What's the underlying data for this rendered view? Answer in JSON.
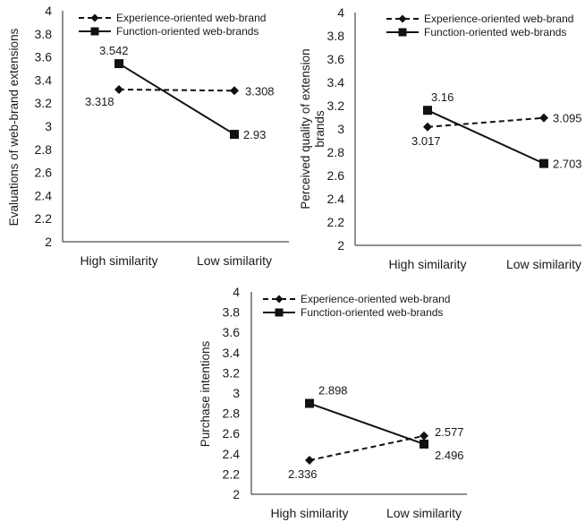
{
  "chart_data": [
    {
      "type": "line",
      "ylabel": "Evaluations of web-brand extensions",
      "categories": [
        "High similarity",
        "Low similarity"
      ],
      "ylim": [
        2,
        4
      ],
      "yticks": [
        "2",
        "2.2",
        "2.4",
        "2.6",
        "2.8",
        "3",
        "3.2",
        "3.4",
        "3.6",
        "3.8",
        "4"
      ],
      "legend": "top-right",
      "series": [
        {
          "name": "Experience-oriented web-brand",
          "values": [
            3.318,
            3.308
          ],
          "labels": [
            "3.318",
            "3.308"
          ],
          "style": "dashed",
          "marker": "diamond"
        },
        {
          "name": "Function-oriented web-brands",
          "values": [
            3.542,
            2.93
          ],
          "labels": [
            "3.542",
            "2.93"
          ],
          "style": "solid",
          "marker": "square"
        }
      ]
    },
    {
      "type": "line",
      "ylabel": "Perceived quality of extension brands",
      "categories": [
        "High similarity",
        "Low similarity"
      ],
      "ylim": [
        2,
        4
      ],
      "yticks": [
        "2",
        "2.2",
        "2.4",
        "2.6",
        "2.8",
        "3",
        "3.2",
        "3.4",
        "3.6",
        "3.8",
        "4"
      ],
      "legend": "top-right",
      "series": [
        {
          "name": "Experience-oriented web-brand",
          "values": [
            3.017,
            3.095
          ],
          "labels": [
            "3.017",
            "3.095"
          ],
          "style": "dashed",
          "marker": "diamond"
        },
        {
          "name": "Function-oriented web-brands",
          "values": [
            3.16,
            2.703
          ],
          "labels": [
            "3.16",
            "2.703"
          ],
          "style": "solid",
          "marker": "square"
        }
      ]
    },
    {
      "type": "line",
      "ylabel": "Purchase intentions",
      "categories": [
        "High similarity",
        "Low similarity"
      ],
      "ylim": [
        2,
        4
      ],
      "yticks": [
        "2",
        "2.2",
        "2.4",
        "2.6",
        "2.8",
        "3",
        "3.2",
        "3.4",
        "3.6",
        "3.8",
        "4"
      ],
      "legend": "top-right",
      "series": [
        {
          "name": "Experience-oriented web-brand",
          "values": [
            2.336,
            2.577
          ],
          "labels": [
            "2.336",
            "2.577"
          ],
          "style": "dashed",
          "marker": "diamond"
        },
        {
          "name": "Function-oriented web-brands",
          "values": [
            2.898,
            2.496
          ],
          "labels": [
            "2.898",
            "2.496"
          ],
          "style": "solid",
          "marker": "square"
        }
      ]
    }
  ]
}
